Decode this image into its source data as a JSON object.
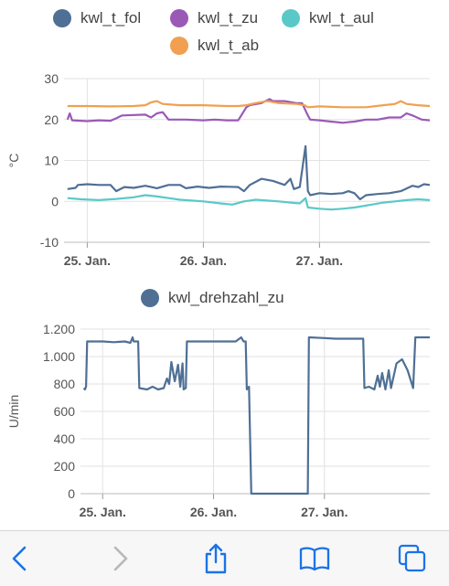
{
  "chart_data": [
    {
      "type": "line",
      "title": "",
      "xlabel": "",
      "ylabel": "°C",
      "ylim": [
        -10,
        30
      ],
      "yticks": [
        -10,
        0,
        10,
        20,
        30
      ],
      "y_tick_labels": [
        "-10",
        "0",
        "10",
        "20",
        "30"
      ],
      "x_tick_labels": [
        "25. Jan.",
        "26. Jan.",
        "27. Jan."
      ],
      "x_tick_pos": [
        1,
        2,
        3
      ],
      "xlim": [
        0.8,
        3.95
      ],
      "grid": true,
      "legend_position": "top",
      "series": [
        {
          "name": "kwl_t_fol",
          "color": "#4f6f95",
          "points": [
            [
              0.83,
              3.0
            ],
            [
              0.9,
              3.3
            ],
            [
              0.92,
              4.0
            ],
            [
              1.0,
              4.2
            ],
            [
              1.1,
              4.0
            ],
            [
              1.2,
              4.0
            ],
            [
              1.25,
              2.5
            ],
            [
              1.32,
              3.5
            ],
            [
              1.4,
              3.3
            ],
            [
              1.5,
              3.8
            ],
            [
              1.6,
              3.2
            ],
            [
              1.7,
              4.0
            ],
            [
              1.8,
              4.0
            ],
            [
              1.85,
              3.2
            ],
            [
              1.95,
              3.6
            ],
            [
              2.05,
              3.3
            ],
            [
              2.15,
              3.6
            ],
            [
              2.3,
              3.5
            ],
            [
              2.35,
              2.5
            ],
            [
              2.4,
              4.0
            ],
            [
              2.5,
              5.5
            ],
            [
              2.6,
              5.0
            ],
            [
              2.7,
              4.0
            ],
            [
              2.75,
              5.5
            ],
            [
              2.78,
              3.0
            ],
            [
              2.83,
              3.5
            ],
            [
              2.88,
              13.5
            ],
            [
              2.9,
              2.5
            ],
            [
              2.92,
              1.5
            ],
            [
              3.0,
              2.0
            ],
            [
              3.1,
              1.8
            ],
            [
              3.2,
              2.0
            ],
            [
              3.25,
              2.5
            ],
            [
              3.3,
              2.0
            ],
            [
              3.35,
              0.5
            ],
            [
              3.4,
              1.5
            ],
            [
              3.5,
              1.8
            ],
            [
              3.6,
              2.0
            ],
            [
              3.7,
              2.5
            ],
            [
              3.8,
              3.8
            ],
            [
              3.85,
              3.5
            ],
            [
              3.9,
              4.2
            ],
            [
              3.95,
              4.0
            ]
          ]
        },
        {
          "name": "kwl_t_zu",
          "color": "#9b59b6",
          "points": [
            [
              0.83,
              20.0
            ],
            [
              0.85,
              21.5
            ],
            [
              0.87,
              19.8
            ],
            [
              1.0,
              19.6
            ],
            [
              1.1,
              19.8
            ],
            [
              1.2,
              19.7
            ],
            [
              1.25,
              20.3
            ],
            [
              1.3,
              21.0
            ],
            [
              1.5,
              21.2
            ],
            [
              1.55,
              20.5
            ],
            [
              1.6,
              21.5
            ],
            [
              1.65,
              21.8
            ],
            [
              1.7,
              20.0
            ],
            [
              1.85,
              20.0
            ],
            [
              2.0,
              19.8
            ],
            [
              2.1,
              20.0
            ],
            [
              2.2,
              19.8
            ],
            [
              2.3,
              19.8
            ],
            [
              2.37,
              23.0
            ],
            [
              2.4,
              23.5
            ],
            [
              2.5,
              24.0
            ],
            [
              2.57,
              25.0
            ],
            [
              2.6,
              24.5
            ],
            [
              2.7,
              24.5
            ],
            [
              2.8,
              24.0
            ],
            [
              2.85,
              24.0
            ],
            [
              2.9,
              21.0
            ],
            [
              2.92,
              20.0
            ],
            [
              3.0,
              19.8
            ],
            [
              3.1,
              19.5
            ],
            [
              3.2,
              19.2
            ],
            [
              3.3,
              19.5
            ],
            [
              3.4,
              20.0
            ],
            [
              3.5,
              20.0
            ],
            [
              3.6,
              20.5
            ],
            [
              3.7,
              20.5
            ],
            [
              3.75,
              21.5
            ],
            [
              3.8,
              21.0
            ],
            [
              3.88,
              20.0
            ],
            [
              3.95,
              19.8
            ]
          ]
        },
        {
          "name": "kwl_t_aul",
          "color": "#5bc8c8",
          "points": [
            [
              0.83,
              0.8
            ],
            [
              0.95,
              0.5
            ],
            [
              1.1,
              0.3
            ],
            [
              1.25,
              0.6
            ],
            [
              1.4,
              1.0
            ],
            [
              1.5,
              1.5
            ],
            [
              1.6,
              1.2
            ],
            [
              1.7,
              0.8
            ],
            [
              1.8,
              0.4
            ],
            [
              1.9,
              0.2
            ],
            [
              2.0,
              0.0
            ],
            [
              2.15,
              -0.5
            ],
            [
              2.25,
              -0.8
            ],
            [
              2.35,
              0.0
            ],
            [
              2.45,
              0.4
            ],
            [
              2.55,
              0.2
            ],
            [
              2.65,
              0.0
            ],
            [
              2.75,
              -0.3
            ],
            [
              2.83,
              -0.5
            ],
            [
              2.88,
              0.8
            ],
            [
              2.9,
              -1.5
            ],
            [
              3.0,
              -1.8
            ],
            [
              3.1,
              -2.0
            ],
            [
              3.2,
              -1.8
            ],
            [
              3.3,
              -1.5
            ],
            [
              3.45,
              -0.8
            ],
            [
              3.55,
              -0.3
            ],
            [
              3.65,
              0.0
            ],
            [
              3.75,
              0.3
            ],
            [
              3.85,
              0.5
            ],
            [
              3.95,
              0.3
            ]
          ]
        },
        {
          "name": "kwl_t_ab",
          "color": "#f0a050",
          "points": [
            [
              0.83,
              23.3
            ],
            [
              1.0,
              23.3
            ],
            [
              1.2,
              23.2
            ],
            [
              1.4,
              23.3
            ],
            [
              1.5,
              23.5
            ],
            [
              1.55,
              24.2
            ],
            [
              1.6,
              24.5
            ],
            [
              1.65,
              23.8
            ],
            [
              1.8,
              23.5
            ],
            [
              2.0,
              23.5
            ],
            [
              2.2,
              23.3
            ],
            [
              2.3,
              23.3
            ],
            [
              2.37,
              23.5
            ],
            [
              2.45,
              24.0
            ],
            [
              2.55,
              24.5
            ],
            [
              2.65,
              24.0
            ],
            [
              2.8,
              23.8
            ],
            [
              2.87,
              23.5
            ],
            [
              2.9,
              23.0
            ],
            [
              3.0,
              23.2
            ],
            [
              3.2,
              23.0
            ],
            [
              3.4,
              23.0
            ],
            [
              3.55,
              23.5
            ],
            [
              3.65,
              23.8
            ],
            [
              3.7,
              24.5
            ],
            [
              3.75,
              23.8
            ],
            [
              3.85,
              23.5
            ],
            [
              3.95,
              23.3
            ]
          ]
        }
      ]
    },
    {
      "type": "line",
      "title": "",
      "xlabel": "",
      "ylabel": "U/min",
      "ylim": [
        0,
        1200
      ],
      "yticks": [
        0,
        200,
        400,
        600,
        800,
        1000,
        1200
      ],
      "y_tick_labels": [
        "0",
        "200",
        "400",
        "600",
        "800",
        "1.000",
        "1.200"
      ],
      "x_tick_labels": [
        "25. Jan.",
        "26. Jan.",
        "27. Jan."
      ],
      "x_tick_pos": [
        1,
        2,
        3
      ],
      "xlim": [
        0.8,
        3.95
      ],
      "grid": true,
      "legend_position": "top",
      "series": [
        {
          "name": "kwl_drehzahl_zu",
          "color": "#4f6f95",
          "points": [
            [
              0.83,
              770
            ],
            [
              0.84,
              760
            ],
            [
              0.85,
              780
            ],
            [
              0.86,
              1110
            ],
            [
              1.0,
              1110
            ],
            [
              1.1,
              1105
            ],
            [
              1.2,
              1110
            ],
            [
              1.25,
              1100
            ],
            [
              1.27,
              1140
            ],
            [
              1.28,
              1110
            ],
            [
              1.32,
              1110
            ],
            [
              1.33,
              770
            ],
            [
              1.4,
              760
            ],
            [
              1.45,
              780
            ],
            [
              1.5,
              760
            ],
            [
              1.55,
              770
            ],
            [
              1.58,
              840
            ],
            [
              1.6,
              800
            ],
            [
              1.62,
              960
            ],
            [
              1.65,
              820
            ],
            [
              1.68,
              940
            ],
            [
              1.7,
              780
            ],
            [
              1.72,
              950
            ],
            [
              1.73,
              760
            ],
            [
              1.75,
              770
            ],
            [
              1.76,
              1110
            ],
            [
              1.9,
              1110
            ],
            [
              2.0,
              1110
            ],
            [
              2.1,
              1110
            ],
            [
              2.2,
              1110
            ],
            [
              2.25,
              1140
            ],
            [
              2.27,
              1110
            ],
            [
              2.29,
              1110
            ],
            [
              2.3,
              760
            ],
            [
              2.32,
              780
            ],
            [
              2.34,
              0
            ],
            [
              2.6,
              0
            ],
            [
              2.85,
              0
            ],
            [
              2.86,
              1140
            ],
            [
              3.0,
              1135
            ],
            [
              3.1,
              1130
            ],
            [
              3.2,
              1130
            ],
            [
              3.35,
              1130
            ],
            [
              3.36,
              770
            ],
            [
              3.4,
              780
            ],
            [
              3.45,
              760
            ],
            [
              3.48,
              860
            ],
            [
              3.5,
              780
            ],
            [
              3.52,
              880
            ],
            [
              3.55,
              760
            ],
            [
              3.58,
              900
            ],
            [
              3.6,
              770
            ],
            [
              3.65,
              950
            ],
            [
              3.7,
              980
            ],
            [
              3.75,
              900
            ],
            [
              3.8,
              770
            ],
            [
              3.82,
              1140
            ],
            [
              3.95,
              1140
            ]
          ]
        }
      ]
    }
  ],
  "legends": {
    "top": [
      {
        "label": "kwl_t_fol",
        "color": "#4f6f95"
      },
      {
        "label": "kwl_t_zu",
        "color": "#9b59b6"
      },
      {
        "label": "kwl_t_aul",
        "color": "#5bc8c8"
      },
      {
        "label": "kwl_t_ab",
        "color": "#f0a050"
      }
    ],
    "bottom": [
      {
        "label": "kwl_drehzahl_zu",
        "color": "#4f6f95"
      }
    ]
  },
  "toolbar": {
    "back_icon": "chevron-left-icon",
    "forward_icon": "chevron-right-icon",
    "share_icon": "share-icon",
    "bookmarks_icon": "book-icon",
    "tabs_icon": "tabs-icon",
    "accent": "#1a73e8",
    "disabled": "#b8b8b8"
  }
}
